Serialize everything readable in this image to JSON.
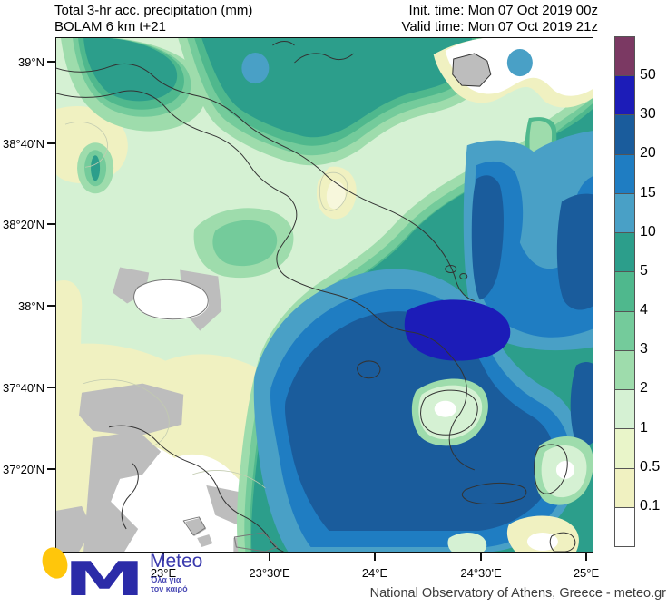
{
  "header": {
    "title_line1": "Total 3-hr acc. precipitation (mm)",
    "title_line2": "BOLAM 6 km t+21",
    "init_time": "Init. time: Mon 07 Oct 2019 00z",
    "valid_time": "Valid time: Mon 07 Oct 2019 21z"
  },
  "map": {
    "y_axis_labels": [
      "39°N",
      "38°40'N",
      "38°20'N",
      "38°N",
      "37°40'N",
      "37°20'N"
    ],
    "x_axis_labels": [
      "23°E",
      "23°30'E",
      "24°E",
      "24°30'E",
      "25°E"
    ]
  },
  "palette": {
    "p50plus": "#7B3963",
    "n3050": "#1C1CB8",
    "b2030": "#1A5C9C",
    "b1520": "#1F7DC2",
    "b1015": "#49A0C6",
    "t510": "#2C9E8B",
    "g45": "#4FB88D",
    "g34": "#74CB9B",
    "g23": "#9EDCAC",
    "base12": "#D5F1D3",
    "y051": "#E9F5C9",
    "y0105": "#F0F1C1",
    "ylight": "#F7F7DC",
    "white0": "#FFFFFF",
    "graymask": "#BDBDBD",
    "coast": "#333333",
    "faint": "#C2CBB0"
  },
  "colorbar": {
    "labels": [
      "50",
      "30",
      "20",
      "15",
      "10",
      "5",
      "4",
      "3",
      "2",
      "1",
      "0.5",
      "0.1"
    ],
    "cells": [
      "p50plus",
      "n3050",
      "b2030",
      "b1520",
      "b1015",
      "t510",
      "g45",
      "g34",
      "g23",
      "base12",
      "y051",
      "y0105",
      "white0"
    ]
  },
  "branding": {
    "logo_text": "Meteo",
    "logo_tagline_line1": "Όλα για",
    "logo_tagline_line2": "τον καιρό",
    "credit": "National Observatory of Athens, Greece - meteo.gr"
  }
}
